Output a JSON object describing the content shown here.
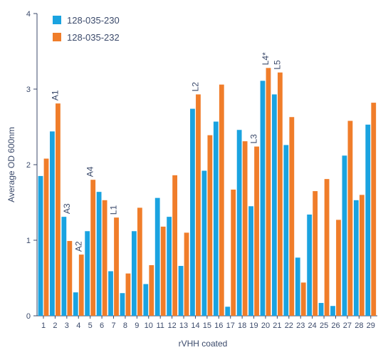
{
  "chart_data": {
    "type": "bar",
    "title": "",
    "xlabel": "rVHH coated",
    "ylabel": "Average OD 600nm",
    "ylim": [
      0,
      4
    ],
    "yticks": [
      0,
      1,
      2,
      3,
      4
    ],
    "grid": false,
    "legend_position": "top-left",
    "categories": [
      "1",
      "2",
      "3",
      "4",
      "5",
      "6",
      "7",
      "8",
      "9",
      "10",
      "11",
      "12",
      "13",
      "14",
      "15",
      "16",
      "17",
      "18",
      "19",
      "20",
      "21",
      "22",
      "23",
      "24",
      "25",
      "26",
      "27",
      "28",
      "29"
    ],
    "series": [
      {
        "name": "128-035-230",
        "color": "#1aa3e0",
        "values": [
          1.85,
          2.44,
          1.31,
          0.31,
          1.12,
          1.64,
          0.59,
          0.3,
          1.12,
          0.42,
          1.56,
          1.31,
          0.66,
          2.74,
          1.92,
          2.57,
          0.12,
          2.46,
          1.45,
          3.11,
          2.93,
          2.26,
          0.77,
          1.34,
          0.17,
          0.13,
          2.12,
          1.53,
          2.53
        ]
      },
      {
        "name": "128-035-232",
        "color": "#f07d2a",
        "values": [
          2.08,
          2.81,
          0.99,
          0.81,
          1.8,
          1.53,
          1.3,
          0.56,
          1.43,
          0.67,
          1.18,
          1.86,
          1.1,
          2.93,
          2.39,
          3.06,
          1.67,
          2.31,
          2.24,
          3.28,
          3.22,
          2.63,
          0.44,
          1.65,
          1.81,
          1.27,
          2.58,
          1.6,
          2.82
        ]
      }
    ],
    "annotations": [
      {
        "text": "A1",
        "category": "2"
      },
      {
        "text": "A3",
        "category": "3"
      },
      {
        "text": "A2",
        "category": "4"
      },
      {
        "text": "A4",
        "category": "5"
      },
      {
        "text": "L1",
        "category": "7"
      },
      {
        "text": "L2",
        "category": "14"
      },
      {
        "text": "L3",
        "category": "19"
      },
      {
        "text": "L4*",
        "category": "20"
      },
      {
        "text": "L5",
        "category": "21"
      }
    ]
  }
}
